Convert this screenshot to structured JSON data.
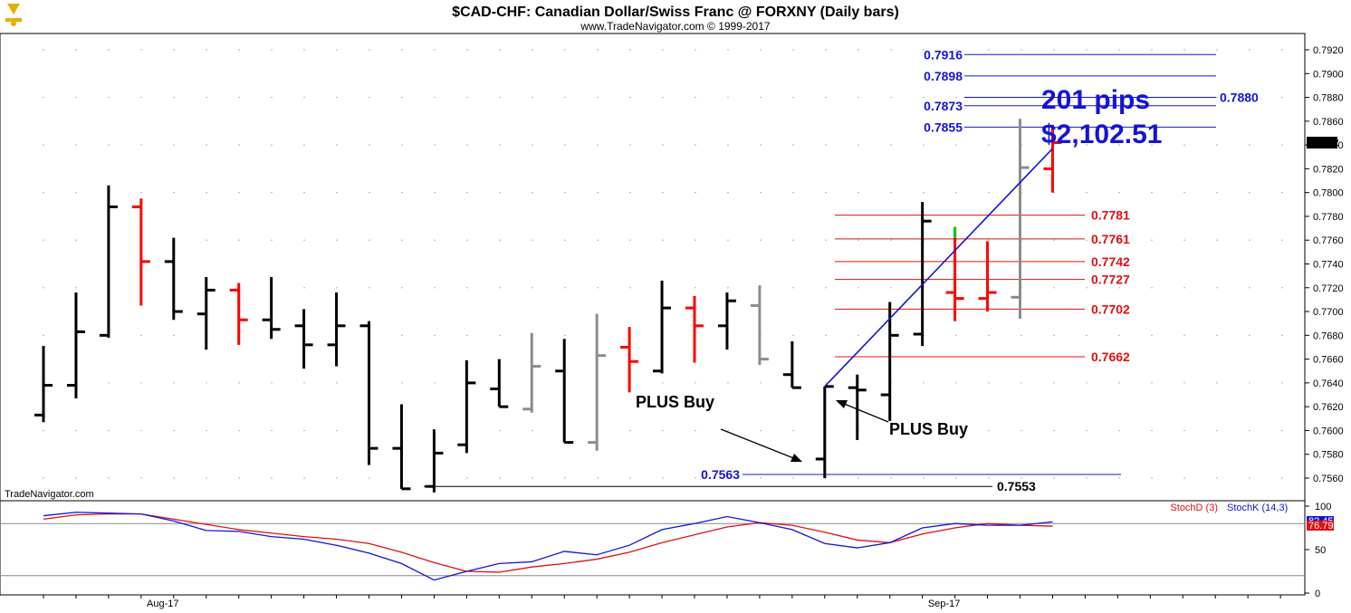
{
  "header": {
    "title": "$CAD-CHF:  Canadian Dollar/Swiss Franc @ FORXNY  (Daily bars)",
    "subtitle": "www.TradeNavigator.com © 1999-2017",
    "watermark": "TradeNavigator.com"
  },
  "colors": {
    "up": "#000000",
    "down": "#ff0000",
    "neutral": "#8c8c8c",
    "signal": "#00cc00",
    "blue": "#1414d8",
    "red": "#e01010"
  },
  "chart_data": [
    {
      "type": "ohlc",
      "ylim": [
        0.7545,
        0.7932
      ],
      "y_ticks": [
        "0.7560",
        "0.7580",
        "0.7600",
        "0.7620",
        "0.7640",
        "0.7660",
        "0.7680",
        "0.7700",
        "0.7720",
        "0.7740",
        "0.7760",
        "0.7780",
        "0.7800",
        "0.7820",
        "0.7840",
        "0.7860",
        "0.7880",
        "0.7900",
        "0.7920"
      ],
      "x_labels": [
        {
          "label": "Aug-17",
          "bar": 4
        },
        {
          "label": "Sep-17",
          "bar": 28
        }
      ],
      "last_price": "0.7842",
      "bars": [
        {
          "o": 0.7613,
          "h": 0.7671,
          "l": 0.7607,
          "c": 0.7638,
          "col": "up"
        },
        {
          "o": 0.7638,
          "h": 0.7716,
          "l": 0.7627,
          "c": 0.7683,
          "col": "up"
        },
        {
          "o": 0.768,
          "h": 0.7806,
          "l": 0.7678,
          "c": 0.7788,
          "col": "up"
        },
        {
          "o": 0.7788,
          "h": 0.7795,
          "l": 0.7705,
          "c": 0.7742,
          "col": "down"
        },
        {
          "o": 0.7742,
          "h": 0.7762,
          "l": 0.7693,
          "c": 0.77,
          "col": "up"
        },
        {
          "o": 0.7698,
          "h": 0.7729,
          "l": 0.7668,
          "c": 0.7718,
          "col": "up"
        },
        {
          "o": 0.7718,
          "h": 0.7724,
          "l": 0.7672,
          "c": 0.7693,
          "col": "down"
        },
        {
          "o": 0.7693,
          "h": 0.7729,
          "l": 0.7677,
          "c": 0.7685,
          "col": "up"
        },
        {
          "o": 0.7688,
          "h": 0.7702,
          "l": 0.7652,
          "c": 0.7672,
          "col": "up"
        },
        {
          "o": 0.7672,
          "h": 0.7716,
          "l": 0.7654,
          "c": 0.7688,
          "col": "up"
        },
        {
          "o": 0.7688,
          "h": 0.7692,
          "l": 0.7571,
          "c": 0.7585,
          "col": "up"
        },
        {
          "o": 0.7585,
          "h": 0.7622,
          "l": 0.7551,
          "c": 0.7551,
          "col": "up"
        },
        {
          "o": 0.7553,
          "h": 0.7601,
          "l": 0.7548,
          "c": 0.7581,
          "col": "up"
        },
        {
          "o": 0.7588,
          "h": 0.7659,
          "l": 0.7581,
          "c": 0.764,
          "col": "up"
        },
        {
          "o": 0.7635,
          "h": 0.766,
          "l": 0.762,
          "c": 0.762,
          "col": "up"
        },
        {
          "o": 0.7618,
          "h": 0.7682,
          "l": 0.7615,
          "c": 0.7654,
          "col": "neutral"
        },
        {
          "o": 0.765,
          "h": 0.7677,
          "l": 0.759,
          "c": 0.759,
          "col": "up"
        },
        {
          "o": 0.759,
          "h": 0.7698,
          "l": 0.7583,
          "c": 0.7663,
          "col": "neutral"
        },
        {
          "o": 0.767,
          "h": 0.7687,
          "l": 0.7632,
          "c": 0.7658,
          "col": "down"
        },
        {
          "o": 0.765,
          "h": 0.7726,
          "l": 0.7648,
          "c": 0.7703,
          "col": "up"
        },
        {
          "o": 0.7703,
          "h": 0.7713,
          "l": 0.7657,
          "c": 0.7688,
          "col": "down"
        },
        {
          "o": 0.7688,
          "h": 0.7716,
          "l": 0.7668,
          "c": 0.7709,
          "col": "up"
        },
        {
          "o": 0.7705,
          "h": 0.7722,
          "l": 0.7655,
          "c": 0.766,
          "col": "neutral"
        },
        {
          "o": 0.7647,
          "h": 0.7675,
          "l": 0.7636,
          "c": 0.7636,
          "col": "up"
        },
        {
          "o": 0.7576,
          "h": 0.7637,
          "l": 0.756,
          "c": 0.7637,
          "col": "up"
        },
        {
          "o": 0.7636,
          "h": 0.7647,
          "l": 0.7592,
          "c": 0.7634,
          "col": "up"
        },
        {
          "o": 0.763,
          "h": 0.7708,
          "l": 0.7608,
          "c": 0.768,
          "col": "up"
        },
        {
          "o": 0.7681,
          "h": 0.7792,
          "l": 0.7671,
          "c": 0.7776,
          "col": "up"
        },
        {
          "o": 0.7716,
          "h": 0.7771,
          "l": 0.7692,
          "c": 0.7711,
          "col": "down",
          "signal_top": true
        },
        {
          "o": 0.7711,
          "h": 0.7759,
          "l": 0.77,
          "c": 0.7716,
          "col": "down"
        },
        {
          "o": 0.7712,
          "h": 0.7862,
          "l": 0.7694,
          "c": 0.7821,
          "col": "neutral"
        },
        {
          "o": 0.782,
          "h": 0.7857,
          "l": 0.78,
          "c": 0.7842,
          "col": "down"
        }
      ],
      "projection_lines": [
        {
          "label": "0.7916",
          "value": 0.7916,
          "color": "blue"
        },
        {
          "label": "0.7898",
          "value": 0.7898,
          "color": "blue"
        },
        {
          "label": "0.7880",
          "value": 0.788,
          "color": "blue"
        },
        {
          "label": "0.7873",
          "value": 0.7873,
          "color": "blue"
        },
        {
          "label": "0.7855",
          "value": 0.7855,
          "color": "blue"
        },
        {
          "label": "0.7781",
          "value": 0.7781,
          "color": "red"
        },
        {
          "label": "0.7761",
          "value": 0.7761,
          "color": "red"
        },
        {
          "label": "0.7742",
          "value": 0.7742,
          "color": "red"
        },
        {
          "label": "0.7727",
          "value": 0.7727,
          "color": "red"
        },
        {
          "label": "0.7702",
          "value": 0.7702,
          "color": "red"
        },
        {
          "label": "0.7662",
          "value": 0.7662,
          "color": "red"
        },
        {
          "label": "0.7563",
          "value": 0.7563,
          "color": "blue"
        },
        {
          "label": "0.7553",
          "value": 0.7553,
          "color": "black"
        }
      ],
      "trend_line": {
        "from": {
          "bar": 24,
          "value": 0.7637
        },
        "to": {
          "bar": 31,
          "value": 0.7837
        }
      },
      "annotations": {
        "pips": "201 pips",
        "dollars": "$2,102.51",
        "buy_label_1": "PLUS Buy",
        "buy_label_2": "PLUS Buy"
      }
    },
    {
      "type": "line",
      "ylim": [
        0,
        100
      ],
      "y_ticks": [
        "0",
        "50",
        "100"
      ],
      "reference_lines": [
        80,
        20
      ],
      "series": [
        {
          "name": "StochD (3)",
          "color": "red",
          "value_label": "76.79",
          "values": [
            85,
            90,
            91,
            91,
            85,
            79,
            73,
            69,
            65,
            62,
            57,
            47,
            35,
            25,
            24,
            30,
            34,
            39,
            47,
            58,
            67,
            76,
            81,
            78,
            70,
            61,
            58,
            68,
            75,
            80,
            78,
            77
          ]
        },
        {
          "name": "StochK (14,3)",
          "color": "blue",
          "value_label": "82.45",
          "values": [
            89,
            93,
            92,
            91,
            83,
            72,
            71,
            65,
            62,
            55,
            46,
            34,
            15,
            25,
            34,
            36,
            48,
            44,
            55,
            73,
            80,
            88,
            81,
            73,
            57,
            52,
            58,
            75,
            80,
            78,
            78,
            82
          ]
        }
      ]
    }
  ]
}
